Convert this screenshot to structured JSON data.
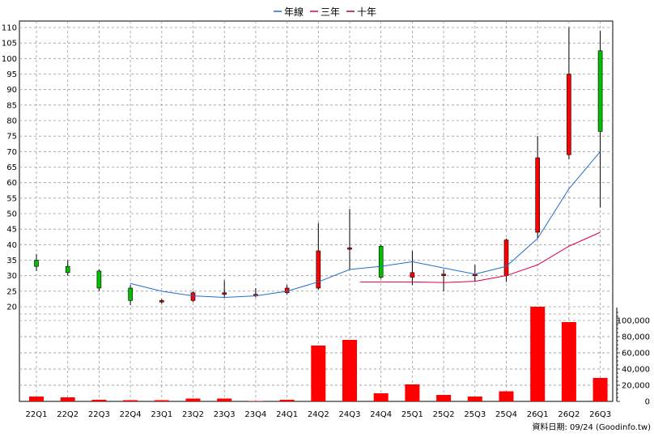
{
  "chart_data": {
    "type": "candlestick",
    "categories": [
      "22Q1",
      "22Q2",
      "22Q3",
      "22Q4",
      "23Q1",
      "23Q2",
      "23Q3",
      "23Q4",
      "24Q1",
      "24Q2",
      "24Q3",
      "24Q4",
      "25Q1",
      "25Q2",
      "25Q3",
      "25Q4",
      "26Q1",
      "26Q2",
      "26Q3"
    ],
    "legend": [
      {
        "name": "年線",
        "color": "#1f6fd0"
      },
      {
        "name": "三年",
        "color": "#e0003a"
      },
      {
        "name": "十年",
        "color": "#a00050"
      }
    ],
    "price_axis": {
      "ylim": [
        20,
        112
      ],
      "ticks": [
        20,
        25,
        30,
        35,
        40,
        45,
        50,
        55,
        60,
        65,
        70,
        75,
        80,
        85,
        90,
        95,
        100,
        105,
        110
      ]
    },
    "volume_axis": {
      "ylim": [
        0,
        118000
      ],
      "ticks": [
        0,
        20000,
        40000,
        60000,
        80000,
        100000
      ],
      "tick_labels": [
        "0",
        "20,000",
        "40,000",
        "60,000",
        "80,000",
        "100,000"
      ]
    },
    "candles": [
      {
        "open": 33,
        "close": 35,
        "high": 37,
        "low": 31.5,
        "up": false
      },
      {
        "open": 31,
        "close": 33,
        "high": 35,
        "low": 30,
        "up": false
      },
      {
        "open": 26,
        "close": 31.5,
        "high": 32,
        "low": 25,
        "up": false
      },
      {
        "open": 22,
        "close": 26,
        "high": 27,
        "low": 20.5,
        "up": false
      },
      {
        "open": 21.5,
        "close": 22,
        "high": 22.5,
        "low": 21,
        "up": true
      },
      {
        "open": 22,
        "close": 24.5,
        "high": 25,
        "low": 21.5,
        "up": true
      },
      {
        "open": 24,
        "close": 24.5,
        "high": 28.5,
        "low": 23,
        "up": true
      },
      {
        "open": 23.5,
        "close": 24,
        "high": 26,
        "low": 23,
        "up": true
      },
      {
        "open": 24.5,
        "close": 26,
        "high": 27,
        "low": 24,
        "up": true
      },
      {
        "open": 26,
        "close": 38,
        "high": 47,
        "low": 25.5,
        "up": true
      },
      {
        "open": 38.5,
        "close": 39,
        "high": 51.5,
        "low": 32,
        "up": true
      },
      {
        "open": 29.5,
        "close": 39.5,
        "high": 40,
        "low": 29,
        "up": false
      },
      {
        "open": 29.5,
        "close": 31,
        "high": 38,
        "low": 27,
        "up": true
      },
      {
        "open": 30,
        "close": 30.5,
        "high": 32,
        "low": 25,
        "up": true
      },
      {
        "open": 30,
        "close": 30.5,
        "high": 33.5,
        "low": 28,
        "up": true
      },
      {
        "open": 30,
        "close": 41.5,
        "high": 42,
        "low": 28,
        "up": true
      },
      {
        "open": 44,
        "close": 68,
        "high": 75,
        "low": 42,
        "up": true
      },
      {
        "open": 69,
        "close": 95,
        "high": 110,
        "low": 67.5,
        "up": true
      },
      {
        "open": 76.5,
        "close": 102.5,
        "high": 109,
        "low": 52,
        "up": false
      }
    ],
    "series": [
      {
        "name": "年線",
        "color": "#1f6fd0",
        "values": [
          null,
          null,
          null,
          27.5,
          25,
          23.5,
          23,
          23.5,
          25,
          28,
          32,
          33,
          34.5,
          32.5,
          30.5,
          33,
          42,
          58,
          70
        ]
      },
      {
        "name": "三年",
        "color": "#e0003a",
        "values": [
          null,
          null,
          null,
          null,
          null,
          null,
          null,
          null,
          null,
          null,
          null,
          28,
          28,
          27.8,
          28.2,
          30,
          33.5,
          39.5,
          44
        ]
      }
    ],
    "volume": [
      6000,
      5000,
      2000,
      1500,
      1500,
      3500,
      3500,
      500,
      2000,
      69000,
      76000,
      10000,
      21000,
      8000,
      6000,
      12500,
      117000,
      98000,
      29000
    ],
    "volume_color": "#ff0000",
    "grid": true,
    "legend_position": "top-center",
    "up_color": "#ff0000",
    "down_color": "#00c000",
    "footer_text": "資料日期: 09/24  (Goodinfo.tw)"
  }
}
